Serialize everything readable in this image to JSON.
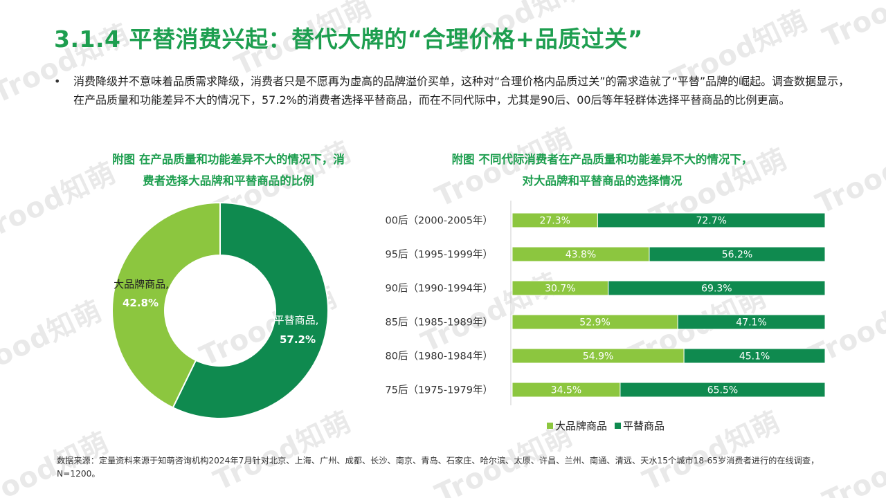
{
  "title": "3.1.4 平替消费兴起：替代大牌的“合理价格+品质过关”",
  "bullet": "消费降级并不意味着品质需求降级，消费者只是不愿再为虚高的品牌溢价买单，这种对“合理价格内品质过关”的需求造就了“平替”品牌的崛起。调查数据显示，在产品质量和功能差异不大的情况下，57.2%的消费者选择平替商品，而在不同代际中，尤其是90后、00后等年轻群体选择平替商品的比例更高。",
  "bullet_icon": "•",
  "watermark_text": "Trood知萌",
  "colors": {
    "brand_green": "#1d9e4f",
    "light_green": "#8cc63f",
    "dark_green": "#0f8a4f"
  },
  "chart_data": [
    {
      "type": "pie",
      "title_lines": [
        "附图 在产品质量和功能差异不大的情况下，消",
        "费者选择大品牌和平替商品的比例"
      ],
      "slices": [
        {
          "name": "平替商品,",
          "value": 57.2,
          "label": "57.2%",
          "color": "#0f8a4f"
        },
        {
          "name": "大品牌商品,",
          "value": 42.8,
          "label": "42.8%",
          "color": "#8cc63f"
        }
      ],
      "style": "donut"
    },
    {
      "type": "bar",
      "orientation": "horizontal",
      "stacked": "percent",
      "title_lines": [
        "附图 不同代际消费者在产品质量和功能差异不大的情况下，",
        "对大品牌和平替商品的选择情况"
      ],
      "categories": [
        "00后（2000-2005年）",
        "95后（1995-1999年）",
        "90后（1990-1994年）",
        "85后（1985-1989年）",
        "80后（1980-1984年）",
        "75后（1975-1979年）"
      ],
      "series": [
        {
          "name": "大品牌商品",
          "color": "#8cc63f",
          "values": [
            27.3,
            43.8,
            30.7,
            52.9,
            54.9,
            34.5
          ],
          "labels": [
            "27.3%",
            "43.8%",
            "30.7%",
            "52.9%",
            "54.9%",
            "34.5%"
          ]
        },
        {
          "name": "平替商品",
          "color": "#0f8a4f",
          "values": [
            72.7,
            56.2,
            69.3,
            47.1,
            45.1,
            65.5
          ],
          "labels": [
            "72.7%",
            "56.2%",
            "69.3%",
            "47.1%",
            "45.1%",
            "65.5%"
          ]
        }
      ],
      "xlim": [
        0,
        100
      ],
      "legend_position": "bottom"
    }
  ],
  "source_note": "数据来源：定量资料来源于知萌咨询机构2024年7月针对北京、上海、广州、成都、长沙、南京、青岛、石家庄、哈尔滨、太原、许昌、兰州、南通、清远、天水15个城市18-65岁消费者进行的在线调查，N=1200。"
}
